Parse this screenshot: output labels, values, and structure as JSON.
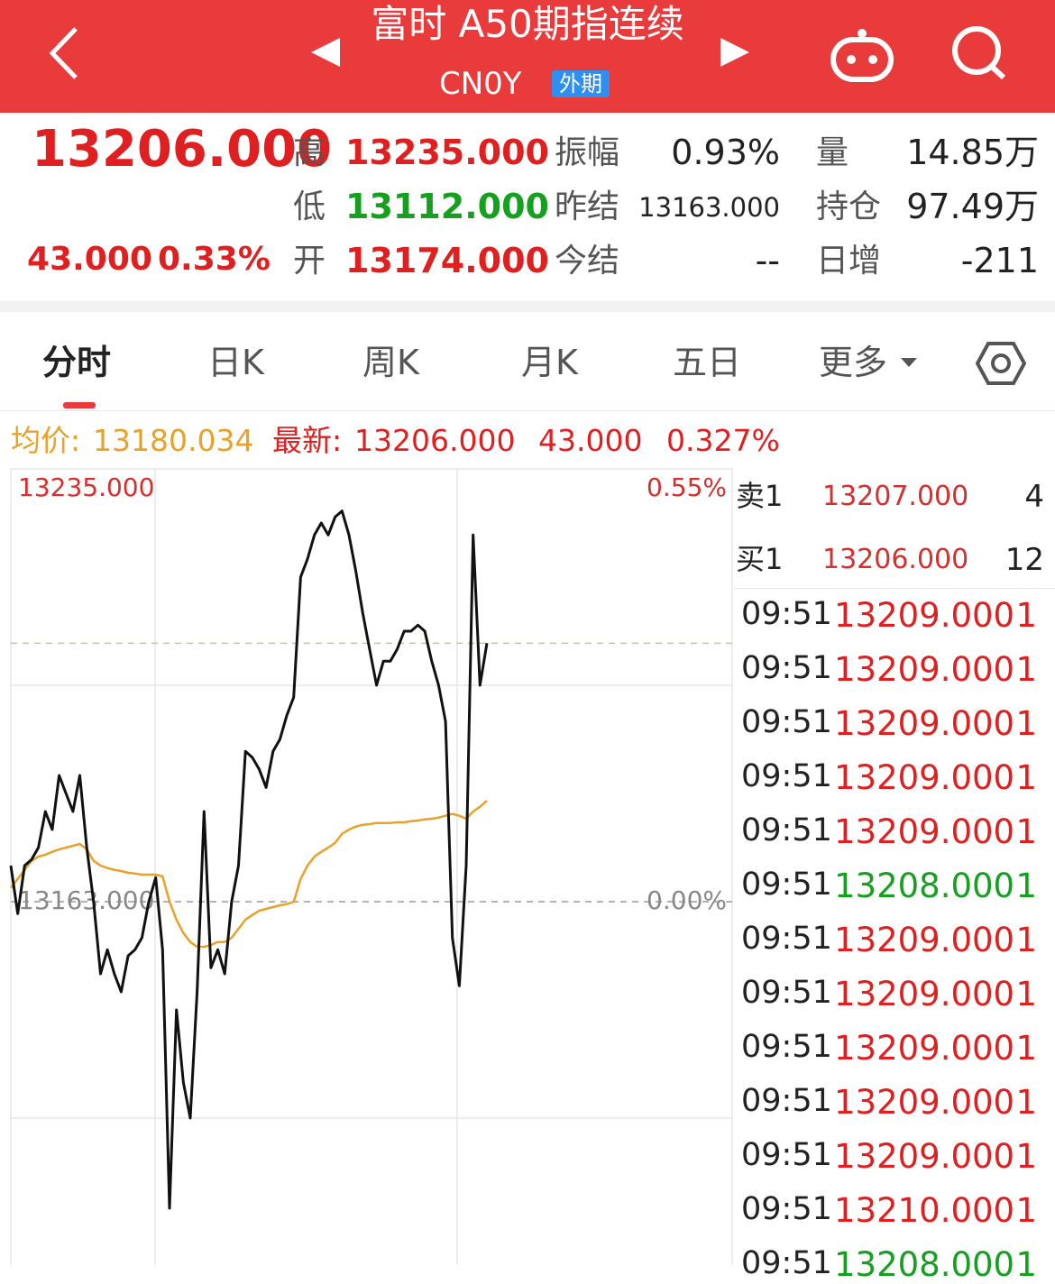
{
  "header": {
    "title": "富时 A50期指连续",
    "code": "CN0Y",
    "tag": "外期"
  },
  "quote": {
    "last": "13206.000",
    "change": "43.000",
    "change_pct": "0.33%",
    "stats": [
      {
        "label": "高",
        "value": "13235.000"
      },
      {
        "label": "低",
        "value": "13112.000"
      },
      {
        "label": "开",
        "value": "13174.000"
      },
      {
        "label": "振幅",
        "value": "0.93%"
      },
      {
        "label": "昨结",
        "value": "13163.000"
      },
      {
        "label": "今结",
        "value": "--"
      },
      {
        "label": "量",
        "value": "14.85万"
      },
      {
        "label": "持仓",
        "value": "97.49万"
      },
      {
        "label": "日增",
        "value": "-211"
      }
    ]
  },
  "tabs": [
    "分时",
    "日K",
    "周K",
    "月K",
    "五日",
    "更多"
  ],
  "info": {
    "avg_label": "均价:",
    "avg": "13180.034",
    "latest_label": "最新:",
    "latest": "13206.000",
    "change": "43.000",
    "change_pct": "0.327%"
  },
  "chart_data": {
    "type": "line",
    "ylim": [
      13091,
      13235
    ],
    "yticks": [
      {
        "value": 13235,
        "label": "13235.000"
      },
      {
        "value": 13163,
        "label": "13163.000"
      }
    ],
    "y2lim": [
      -0.55,
      0.55
    ],
    "y2ticks": [
      {
        "value": 0.55,
        "label": "0.55%"
      },
      {
        "value": 0,
        "label": "0.00%"
      }
    ],
    "hline": 13206,
    "series": [
      {
        "name": "最新",
        "color": "#111111",
        "values": [
          13169,
          13161,
          13169,
          13170,
          13172,
          13178,
          13175,
          13184,
          13181,
          13178,
          13184,
          13172,
          13163,
          13151,
          13155,
          13151,
          13148,
          13154,
          13155,
          13157,
          13163,
          13167,
          13155,
          13112,
          13145,
          13133,
          13127,
          13148,
          13178,
          13152,
          13155,
          13151,
          13163,
          13169,
          13188,
          13187,
          13185,
          13182,
          13188,
          13190,
          13194,
          13197,
          13217,
          13220,
          13224,
          13226,
          13224,
          13227,
          13228,
          13224,
          13218,
          13211,
          13205,
          13199,
          13203,
          13203,
          13205,
          13208,
          13208,
          13209,
          13208,
          13203,
          13199,
          13193,
          13157,
          13149,
          13169,
          13224,
          13199,
          13206
        ]
      },
      {
        "name": "均价",
        "color": "#e8a22a",
        "values": [
          13165.3,
          13166.8,
          13168.3,
          13169.8,
          13170.5,
          13170.8,
          13171.3,
          13171.7,
          13172,
          13172.3,
          13172.6,
          13171.7,
          13169.8,
          13169,
          13168.6,
          13168.3,
          13168.1,
          13167.8,
          13167.7,
          13167.5,
          13167.5,
          13167.5,
          13167.2,
          13163,
          13160,
          13157.8,
          13156.3,
          13155.5,
          13155.5,
          13155.8,
          13156.3,
          13156.3,
          13157,
          13158.5,
          13160,
          13160.8,
          13161.5,
          13161.8,
          13162.1,
          13162.4,
          13162.6,
          13163,
          13166.8,
          13169,
          13170.5,
          13171.3,
          13172,
          13172.8,
          13174.3,
          13175,
          13175.5,
          13175.8,
          13175.9,
          13176.1,
          13176.1,
          13176.1,
          13176.2,
          13176.2,
          13176.4,
          13176.5,
          13176.7,
          13176.8,
          13177,
          13177.3,
          13177.6,
          13177.3,
          13176.8,
          13178,
          13178.8,
          13179.8
        ]
      }
    ]
  },
  "book": [
    {
      "label": "卖1",
      "price": "13207.000",
      "volume": "4"
    },
    {
      "label": "买1",
      "price": "13206.000",
      "volume": "12"
    }
  ],
  "trades": [
    {
      "time": "09:51",
      "price": "13209.000",
      "volume": "1",
      "color": "#e02020"
    },
    {
      "time": "09:51",
      "price": "13209.000",
      "volume": "1",
      "color": "#e02020"
    },
    {
      "time": "09:51",
      "price": "13209.000",
      "volume": "1",
      "color": "#e02020"
    },
    {
      "time": "09:51",
      "price": "13209.000",
      "volume": "1",
      "color": "#e02020"
    },
    {
      "time": "09:51",
      "price": "13209.000",
      "volume": "1",
      "color": "#e02020"
    },
    {
      "time": "09:51",
      "price": "13208.000",
      "volume": "1",
      "color": "#16a020"
    },
    {
      "time": "09:51",
      "price": "13209.000",
      "volume": "1",
      "color": "#e02020"
    },
    {
      "time": "09:51",
      "price": "13209.000",
      "volume": "1",
      "color": "#e02020"
    },
    {
      "time": "09:51",
      "price": "13209.000",
      "volume": "1",
      "color": "#e02020"
    },
    {
      "time": "09:51",
      "price": "13209.000",
      "volume": "1",
      "color": "#e02020"
    },
    {
      "time": "09:51",
      "price": "13209.000",
      "volume": "1",
      "color": "#e02020"
    },
    {
      "time": "09:51",
      "price": "13210.000",
      "volume": "1",
      "color": "#e02020"
    },
    {
      "time": "09:51",
      "price": "13208.000",
      "volume": "1",
      "color": "#16a020"
    }
  ]
}
